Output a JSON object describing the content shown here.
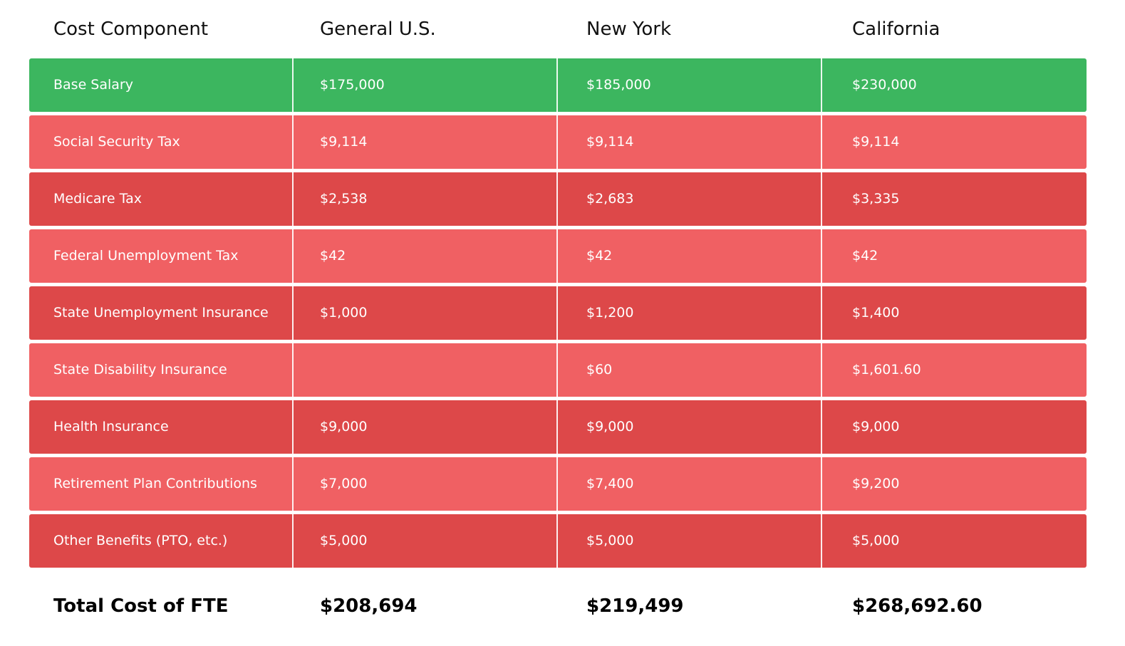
{
  "colors": {
    "highlight_row": "#3cb65f",
    "row_light": "#f06063",
    "row_dark": "#dd4849",
    "text_on_row": "#ffffff",
    "header_text": "#111111"
  },
  "chart_data": {
    "type": "table",
    "columns": [
      "Cost Component",
      "General U.S.",
      "New York",
      "California"
    ],
    "rows": [
      {
        "component": "Base Salary",
        "values": [
          "$175,000",
          "$185,000",
          "$230,000"
        ],
        "style": "highlight"
      },
      {
        "component": "Social Security Tax",
        "values": [
          "$9,114",
          "$9,114",
          "$9,114"
        ],
        "style": "light"
      },
      {
        "component": "Medicare Tax",
        "values": [
          "$2,538",
          "$2,683",
          "$3,335"
        ],
        "style": "dark"
      },
      {
        "component": "Federal Unemployment Tax",
        "values": [
          "$42",
          "$42",
          "$42"
        ],
        "style": "light"
      },
      {
        "component": "State Unemployment Insurance",
        "values": [
          "$1,000",
          "$1,200",
          "$1,400"
        ],
        "style": "dark"
      },
      {
        "component": "State Disability Insurance",
        "values": [
          "",
          "$60",
          "$1,601.60"
        ],
        "style": "light"
      },
      {
        "component": "Health Insurance",
        "values": [
          "$9,000",
          "$9,000",
          "$9,000"
        ],
        "style": "dark"
      },
      {
        "component": "Retirement Plan Contributions",
        "values": [
          "$7,000",
          "$7,400",
          "$9,200"
        ],
        "style": "light"
      },
      {
        "component": "Other Benefits (PTO, etc.)",
        "values": [
          "$5,000",
          "$5,000",
          "$5,000"
        ],
        "style": "dark"
      }
    ],
    "total": {
      "label": "Total Cost of FTE",
      "values": [
        "$208,694",
        "$219,499",
        "$268,692.60"
      ]
    }
  }
}
